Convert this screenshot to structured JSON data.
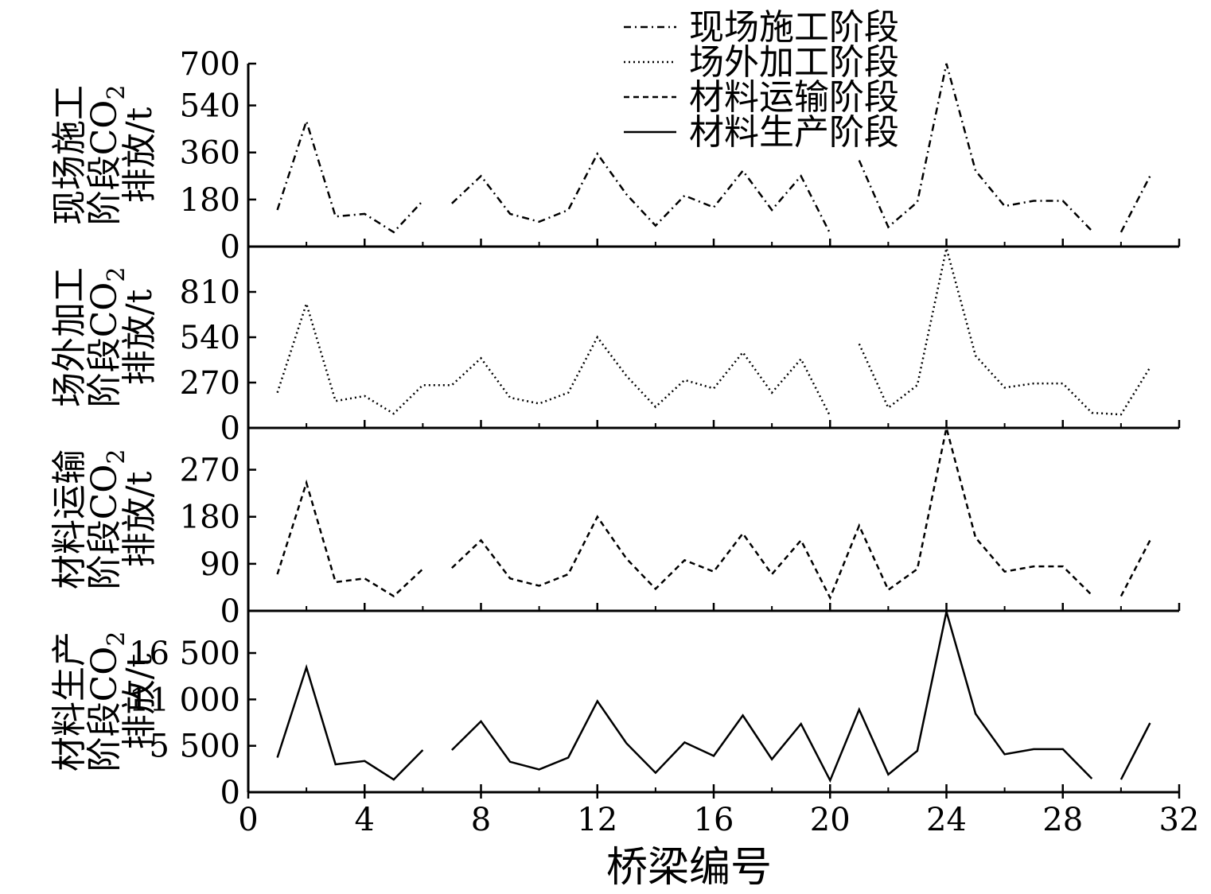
{
  "chart_data": {
    "type": "line",
    "xlabel": "桥梁编号",
    "xlim": [
      0,
      32
    ],
    "xticks": [
      0,
      4,
      8,
      12,
      16,
      20,
      24,
      28,
      32
    ],
    "x": [
      1,
      2,
      3,
      4,
      5,
      6,
      7,
      8,
      9,
      10,
      11,
      12,
      13,
      14,
      15,
      16,
      17,
      18,
      19,
      20,
      21,
      22,
      23,
      24,
      25,
      26,
      27,
      28,
      29,
      30,
      31
    ],
    "legend": {
      "position": "top-center",
      "entries": [
        {
          "name": "现场施工阶段",
          "style": "dash-dot"
        },
        {
          "name": "场外加工阶段",
          "style": "dotted"
        },
        {
          "name": "材料运输阶段",
          "style": "dashed"
        },
        {
          "name": "材料生产阶段",
          "style": "solid"
        }
      ]
    },
    "panels": [
      {
        "series_name": "现场施工阶段",
        "ylabel_lines": [
          "现场施工",
          "阶段CO",
          "排放/t"
        ],
        "ylabel_sub": "2",
        "ylim": [
          0,
          700
        ],
        "yticks": [
          0,
          180,
          360,
          540,
          700
        ],
        "ytick_labels": [
          "0",
          "180",
          "360",
          "540",
          "700"
        ],
        "style": "dash-dot",
        "values": [
          140,
          480,
          115,
          125,
          55,
          175,
          165,
          270,
          125,
          95,
          140,
          355,
          200,
          80,
          195,
          150,
          290,
          140,
          270,
          50,
          330,
          75,
          170,
          700,
          290,
          155,
          175,
          175,
          60,
          55,
          270
        ],
        "breaks_after_x": [
          6,
          20,
          29
        ]
      },
      {
        "series_name": "场外加工阶段",
        "ylabel_lines": [
          "场外加工",
          "阶段CO",
          "排放/t"
        ],
        "ylabel_sub": "2",
        "ylim": [
          0,
          1080
        ],
        "yticks": [
          0,
          270,
          540,
          810
        ],
        "ytick_labels": [
          "0",
          "270",
          "540",
          "810"
        ],
        "style": "dotted",
        "values": [
          210,
          740,
          160,
          190,
          85,
          255,
          255,
          415,
          180,
          145,
          210,
          540,
          310,
          125,
          285,
          235,
          450,
          210,
          410,
          70,
          500,
          120,
          255,
          1070,
          430,
          240,
          265,
          265,
          90,
          80,
          360
        ],
        "breaks_after_x": [
          20
        ]
      },
      {
        "series_name": "材料运输阶段",
        "ylabel_lines": [
          "材料运输",
          "阶段CO",
          "排放/t"
        ],
        "ylabel_sub": "2",
        "ylim": [
          0,
          350
        ],
        "yticks": [
          0,
          90,
          180,
          270
        ],
        "ytick_labels": [
          "0",
          "90",
          "180",
          "270"
        ],
        "style": "dashed",
        "values": [
          70,
          245,
          55,
          62,
          28,
          80,
          82,
          135,
          62,
          48,
          70,
          180,
          100,
          42,
          97,
          75,
          148,
          70,
          135,
          25,
          163,
          40,
          80,
          350,
          140,
          75,
          85,
          85,
          30,
          28,
          135
        ],
        "breaks_after_x": [
          6,
          29
        ]
      },
      {
        "series_name": "材料生产阶段",
        "ylabel_lines": [
          "材料生产",
          "阶段CO",
          "排放/t"
        ],
        "ylabel_sub": "2",
        "ylim": [
          0,
          21500
        ],
        "yticks": [
          0,
          5500,
          11000,
          16500
        ],
        "ytick_labels": [
          "0",
          "5 500",
          "11 000",
          "16 500"
        ],
        "style": "solid",
        "values": [
          4100,
          14800,
          3300,
          3700,
          1500,
          5000,
          5000,
          8400,
          3600,
          2700,
          4100,
          10800,
          5800,
          2300,
          5900,
          4300,
          9100,
          3900,
          8100,
          1400,
          9800,
          2100,
          4900,
          21400,
          9300,
          4500,
          5100,
          5100,
          1600,
          1500,
          8200
        ],
        "breaks_after_x": [
          6,
          29
        ]
      }
    ]
  },
  "colors": {
    "line": "#000000",
    "axis": "#000000",
    "background": "#ffffff"
  }
}
